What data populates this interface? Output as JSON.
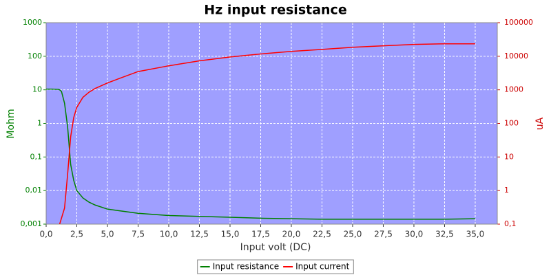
{
  "chart_data": {
    "type": "line",
    "title": "Hz input resistance",
    "xlabel": "Input volt (DC)",
    "ylabel": "Mohm",
    "y2label": "uA",
    "x": [
      0,
      0.5,
      1,
      1.1,
      1.25,
      1.5,
      1.75,
      2,
      2.25,
      2.5,
      3,
      3.5,
      4,
      5,
      6,
      7.5,
      10,
      12.5,
      15,
      17.5,
      20,
      22.5,
      25,
      27.5,
      30,
      32.5,
      35
    ],
    "series": [
      {
        "name": "Input resistance",
        "color": "#008000",
        "axis": "y",
        "values": [
          10.5,
          10.5,
          10.3,
          10,
          9,
          4,
          0.8,
          0.06,
          0.02,
          0.01,
          0.006,
          0.0045,
          0.0037,
          0.0028,
          0.0025,
          0.0021,
          0.0018,
          0.0017,
          0.0016,
          0.0015,
          0.00145,
          0.0014,
          0.0014,
          0.0014,
          0.0014,
          0.0014,
          0.00145
        ]
      },
      {
        "name": "Input current",
        "color": "#ff0000",
        "axis": "y2",
        "values": [
          null,
          null,
          null,
          0.1,
          0.15,
          0.3,
          3,
          40,
          150,
          300,
          600,
          850,
          1100,
          1600,
          2200,
          3500,
          5200,
          7300,
          9500,
          11700,
          14000,
          16000,
          18500,
          20500,
          22500,
          23500,
          23500
        ]
      }
    ],
    "xlim": [
      0,
      36.8
    ],
    "xticks": [
      {
        "value": 0,
        "label": "0,0"
      },
      {
        "value": 2.5,
        "label": "2,5"
      },
      {
        "value": 5,
        "label": "5,0"
      },
      {
        "value": 7.5,
        "label": "7,5"
      },
      {
        "value": 10,
        "label": "10,0"
      },
      {
        "value": 12.5,
        "label": "12,5"
      },
      {
        "value": 15,
        "label": "15,0"
      },
      {
        "value": 17.5,
        "label": "17,5"
      },
      {
        "value": 20,
        "label": "20,0"
      },
      {
        "value": 22.5,
        "label": "22,5"
      },
      {
        "value": 25,
        "label": "25,0"
      },
      {
        "value": 27.5,
        "label": "27,5"
      },
      {
        "value": 30,
        "label": "30,0"
      },
      {
        "value": 32.5,
        "label": "32,5"
      },
      {
        "value": 35,
        "label": "35,0"
      }
    ],
    "ylim": [
      0.001,
      1000
    ],
    "ylog": true,
    "yticks": [
      {
        "value": 0.001,
        "label": "0,001"
      },
      {
        "value": 0.01,
        "label": "0,01"
      },
      {
        "value": 0.1,
        "label": "0,1"
      },
      1,
      10,
      100,
      1000
    ],
    "y2lim": [
      0.1,
      100000
    ],
    "y2log": true,
    "y2ticks": [
      {
        "value": 0.1,
        "label": "0,1"
      },
      1,
      10,
      100,
      1000,
      10000,
      100000
    ],
    "grid": true,
    "legend": "bottom",
    "plot_background": "#9f9fff",
    "ycolor": "#008000",
    "y2color": "#cc0000"
  }
}
